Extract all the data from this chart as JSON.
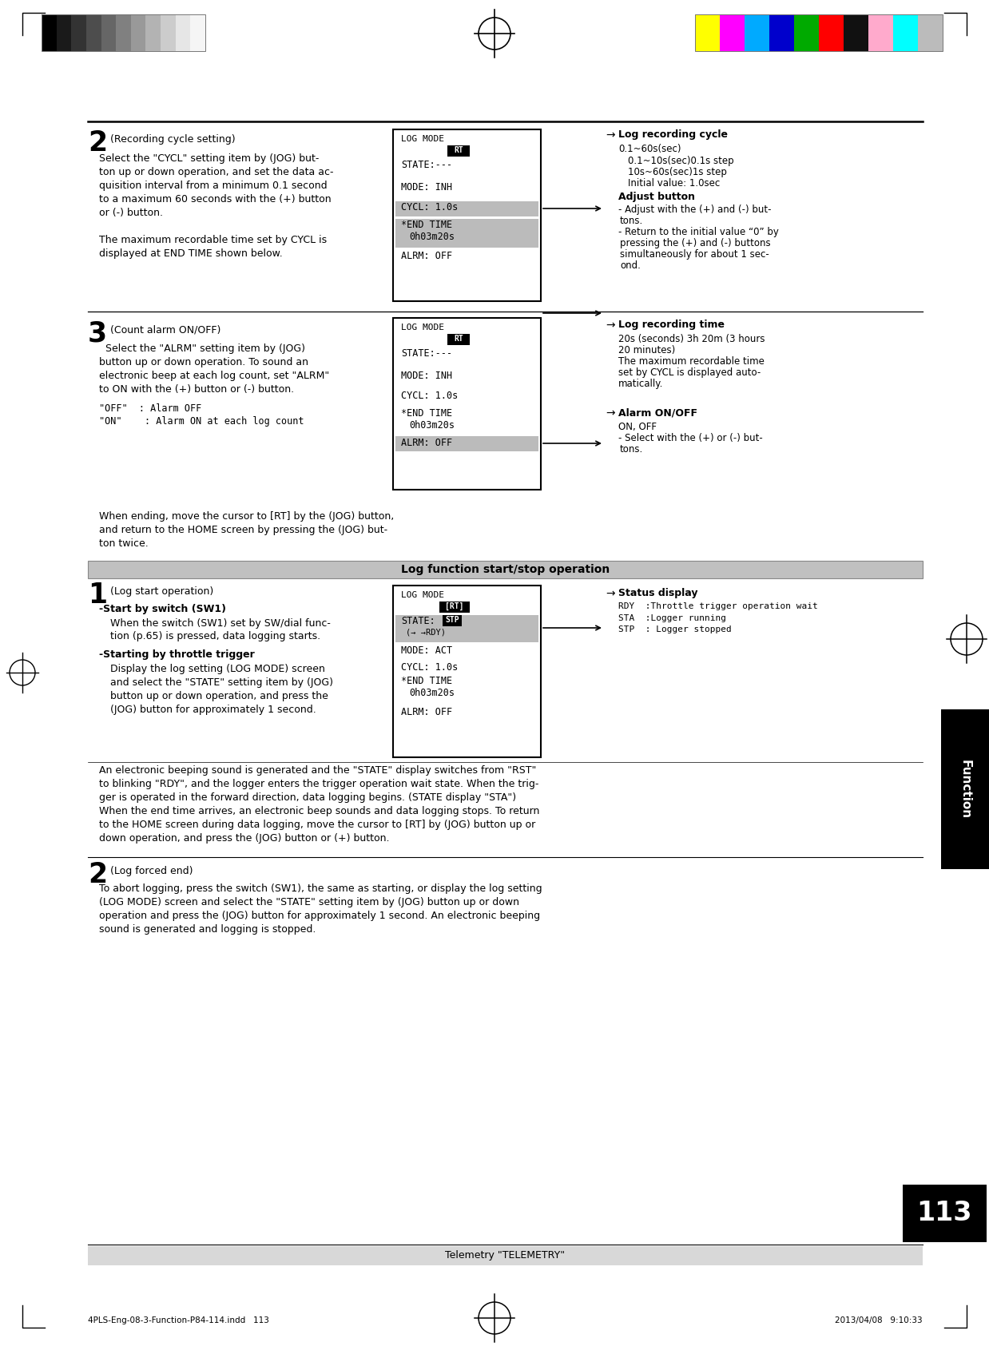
{
  "page_width": 12.38,
  "page_height": 16.85,
  "bg_color": "#ffffff",
  "header_colors_left": [
    "#000000",
    "#1a1a1a",
    "#333333",
    "#4d4d4d",
    "#666666",
    "#808080",
    "#999999",
    "#b3b3b3",
    "#cccccc",
    "#e6e6e6",
    "#f5f5f5"
  ],
  "header_colors_right": [
    "#ffff00",
    "#ff00ff",
    "#00aaff",
    "#0000cc",
    "#00aa00",
    "#ff0000",
    "#111111",
    "#ffaacc",
    "#00ffff",
    "#bbbbbb"
  ],
  "bottom_left": "4PLS-Eng-08-3-Function-P84-114.indd   113",
  "bottom_right": "2013/04/08   9:10:33",
  "footer_text": "Telemetry \"TELEMETRY\"",
  "page_num": "113",
  "function_tab": "Function"
}
